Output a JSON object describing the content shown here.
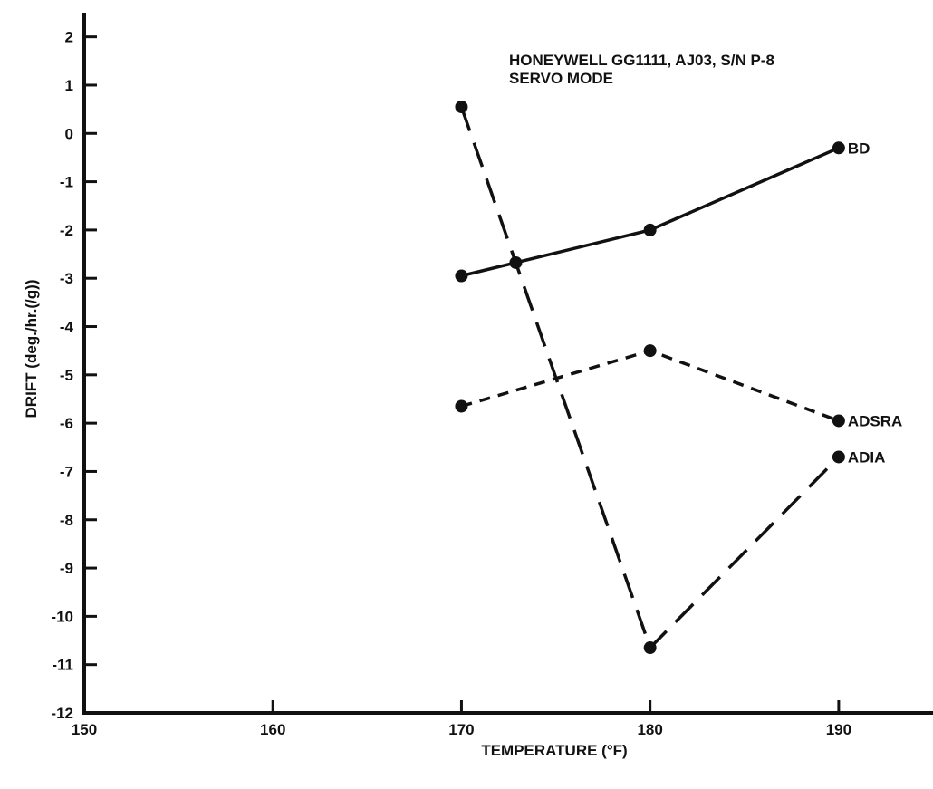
{
  "chart_data": {
    "type": "line",
    "annotation_lines": [
      "HONEYWELL GG1111, AJ03, S/N P-8",
      "SERVO MODE"
    ],
    "xlabel": "TEMPERATURE (°F)",
    "ylabel": "DRIFT (deg./hr.(/g))",
    "xlim": [
      150,
      195
    ],
    "ylim": [
      -12,
      2.5
    ],
    "x_ticks": [
      150,
      160,
      170,
      180,
      190
    ],
    "y_ticks": [
      2,
      1,
      0,
      -1,
      -2,
      -3,
      -4,
      -5,
      -6,
      -7,
      -8,
      -9,
      -10,
      -11,
      -12
    ],
    "grid": false,
    "series": [
      {
        "name": "BD",
        "style": "solid",
        "color": "#111111",
        "x": [
          170,
          180,
          190
        ],
        "y": [
          -2.95,
          -2.0,
          -0.3
        ]
      },
      {
        "name": "ADSRA",
        "style": "short-dash",
        "color": "#111111",
        "x": [
          170,
          180,
          190
        ],
        "y": [
          -5.65,
          -4.5,
          -5.95
        ]
      },
      {
        "name": "ADIA",
        "style": "long-dash",
        "color": "#111111",
        "x": [
          170,
          180,
          190
        ],
        "y": [
          0.55,
          -10.65,
          -6.7
        ]
      }
    ]
  }
}
